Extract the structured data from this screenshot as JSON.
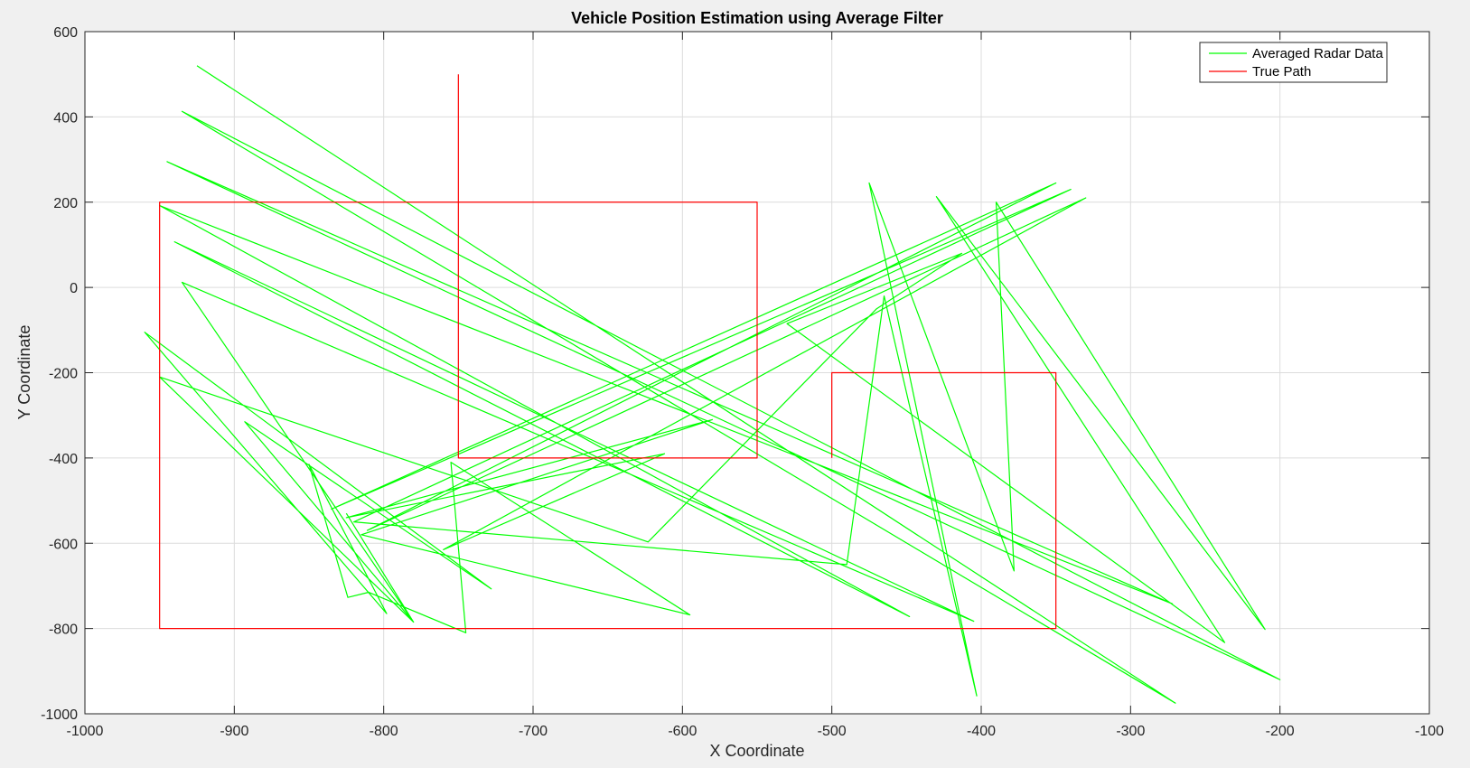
{
  "chart_data": {
    "type": "line",
    "title": "Vehicle Position Estimation using Average Filter",
    "xlabel": "X Coordinate",
    "ylabel": "Y Coordinate",
    "xlim": [
      -1000,
      -100
    ],
    "ylim": [
      -1000,
      600
    ],
    "xticks": [
      -1000,
      -900,
      -800,
      -700,
      -600,
      -500,
      -400,
      -300,
      -200,
      -100
    ],
    "yticks": [
      -1000,
      -800,
      -600,
      -400,
      -200,
      0,
      200,
      400,
      600
    ],
    "grid": true,
    "legend_position": "top-right",
    "series": [
      {
        "name": "Averaged Radar Data",
        "color": "#00ff00",
        "x": [
          -925,
          -270,
          -935,
          -200,
          -945,
          -272,
          -950,
          -448,
          -940,
          -405,
          -935,
          -780,
          -893,
          -728,
          -960,
          -798,
          -850,
          -824,
          -810,
          -745,
          -755,
          -595,
          -815,
          -580,
          -825,
          -612,
          -760,
          -330,
          -811,
          -350,
          -835,
          -340,
          -820,
          -490,
          -465,
          -403,
          -475,
          -378,
          -390,
          -210,
          -430,
          -237,
          -530,
          -413,
          -470,
          -623,
          -950,
          -780,
          -825
        ],
        "y": [
          520,
          -975,
          413,
          -920,
          295,
          -742,
          192,
          -772,
          107,
          -783,
          12,
          -785,
          -315,
          -707,
          -105,
          -765,
          -415,
          -727,
          -715,
          -810,
          -410,
          -768,
          -580,
          -310,
          -540,
          -390,
          -615,
          210,
          -570,
          245,
          -520,
          230,
          -550,
          -650,
          -20,
          -958,
          245,
          -665,
          200,
          -802,
          213,
          -833,
          -85,
          80,
          -50,
          -597,
          -210,
          -785,
          -530
        ]
      },
      {
        "name": "True Path",
        "color": "#ff0000",
        "x": [
          -750,
          -750,
          -550,
          -550,
          -950,
          -950,
          -350,
          -350,
          -500,
          -500
        ],
        "y": [
          500,
          -400,
          -400,
          200,
          200,
          -800,
          -800,
          -200,
          -200,
          -400
        ]
      }
    ]
  }
}
